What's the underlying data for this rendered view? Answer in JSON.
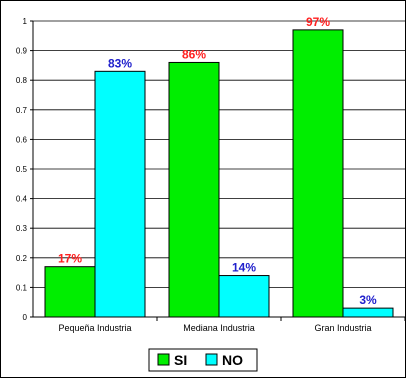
{
  "chart_data": {
    "type": "bar",
    "categories": [
      "Pequeña Industria",
      "Mediana Industria",
      "Gran Industria"
    ],
    "series": [
      {
        "name": "SI",
        "values": [
          0.17,
          0.86,
          0.97
        ],
        "labels": [
          "17%",
          "86%",
          "97%"
        ],
        "color": "#00ee00",
        "label_color": "#ff2020"
      },
      {
        "name": "NO",
        "values": [
          0.83,
          0.14,
          0.03
        ],
        "labels": [
          "83%",
          "14%",
          "3%"
        ],
        "color": "#00ffff",
        "label_color": "#2020cc"
      }
    ],
    "yticks": [
      "0",
      "0.1",
      "0.2",
      "0.3",
      "0.4",
      "0.5",
      "0.6",
      "0.7",
      "0.8",
      "0.9",
      "1"
    ],
    "ylim": [
      0,
      1
    ],
    "grid": true,
    "legend": "bottom-center",
    "title": "",
    "xlabel": "",
    "ylabel": ""
  }
}
